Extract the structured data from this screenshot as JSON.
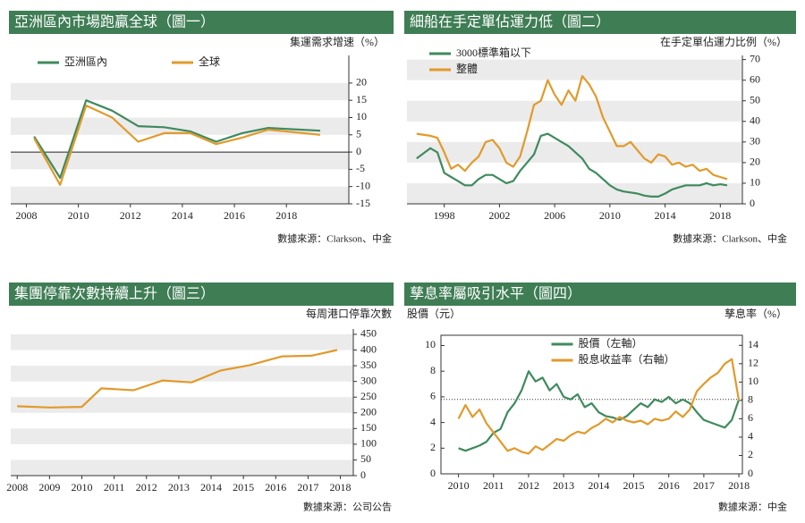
{
  "chart_data": [
    {
      "type": "line",
      "title": "亞洲區內市場跑贏全球（圖一）",
      "y_label": "集運需求增速（%）",
      "source": "數據來源：Clarkson、中金",
      "x": [
        2008.3,
        2009.3,
        2010.3,
        2011.3,
        2012.3,
        2013.3,
        2014.3,
        2015.3,
        2016.3,
        2017.3,
        2019.3
      ],
      "series": [
        {
          "name": "亞洲區內",
          "color": "#3f8a5e",
          "values": [
            4.5,
            -7.5,
            15,
            12,
            7.5,
            7.2,
            6,
            3,
            5.5,
            7,
            6.2
          ]
        },
        {
          "name": "全球",
          "color": "#e19a2b",
          "values": [
            4,
            -9.5,
            13.5,
            10,
            3,
            5.5,
            5.5,
            2.3,
            4.2,
            6.5,
            5
          ]
        }
      ],
      "xlim": [
        2007.4,
        2020.4
      ],
      "xticks": [
        2008,
        2010,
        2012,
        2014,
        2016,
        2018
      ],
      "ylim": [
        -15,
        28
      ],
      "yticks": [
        -15,
        -10,
        -5,
        0,
        5,
        10,
        15,
        20
      ],
      "grid": true,
      "legend": "top"
    },
    {
      "type": "line",
      "title": "細船在手定單佔運力低（圖二）",
      "y_label": "在手定單佔運力比例（%）",
      "source": "數據來源：Clarkson、中金",
      "x": [
        1996,
        1997,
        1997.5,
        1998,
        1998.5,
        1999,
        1999.5,
        2000,
        2000.5,
        2001,
        2001.5,
        2002,
        2002.5,
        2003,
        2003.5,
        2004,
        2004.5,
        2005,
        2005.5,
        2006,
        2006.5,
        2007,
        2007.5,
        2008,
        2008.5,
        2009,
        2009.5,
        2010,
        2010.5,
        2011,
        2011.5,
        2012,
        2012.5,
        2013,
        2013.5,
        2014,
        2014.5,
        2015,
        2015.5,
        2016,
        2016.5,
        2017,
        2017.5,
        2018,
        2018.5
      ],
      "series": [
        {
          "name": "3000標準箱以下",
          "color": "#3f8a5e",
          "values": [
            22,
            27,
            25,
            15,
            13,
            11,
            9,
            9,
            12,
            14,
            14,
            12,
            10,
            11,
            16,
            20,
            24,
            33,
            34,
            32,
            30,
            28,
            25,
            22,
            17,
            15,
            12,
            9,
            7,
            6,
            5.5,
            5,
            4,
            3.5,
            3.5,
            5,
            7,
            8,
            9,
            9,
            9,
            10,
            9,
            9.5,
            9
          ]
        },
        {
          "name": "整體",
          "color": "#e19a2b",
          "values": [
            34,
            33,
            32,
            25,
            17,
            19,
            16,
            20,
            23,
            30,
            31,
            27,
            20,
            18,
            23,
            35,
            48,
            50,
            60,
            53,
            48,
            55,
            50,
            62,
            58,
            52,
            42,
            35,
            28,
            28,
            30,
            26,
            22,
            20,
            24,
            23,
            19,
            20,
            18,
            19,
            16,
            17,
            14,
            13,
            12
          ]
        }
      ],
      "xlim": [
        1995.3,
        2019.6
      ],
      "xticks": [
        1998,
        2002,
        2006,
        2010,
        2014,
        2018
      ],
      "ylim": [
        0,
        72
      ],
      "yticks": [
        0,
        10,
        20,
        30,
        40,
        50,
        60,
        70
      ],
      "grid": true,
      "legend": "top-left"
    },
    {
      "type": "line",
      "title": "集團停靠次數持續上升（圖三）",
      "y_label": "每周港口停靠次數",
      "source": "數據來源：公司公告",
      "x": [
        2008,
        2009,
        2010,
        2010.6,
        2011.6,
        2012.5,
        2013.4,
        2014.3,
        2015.2,
        2016.2,
        2017.1,
        2017.9
      ],
      "series": [
        {
          "color": "#e19a2b",
          "values": [
            221,
            217,
            219,
            278,
            272,
            303,
            297,
            335,
            352,
            380,
            382,
            400
          ]
        }
      ],
      "xlim": [
        2007.8,
        2018.4
      ],
      "xticks": [
        2008,
        2009,
        2010,
        2011,
        2012,
        2013,
        2014,
        2015,
        2016,
        2017,
        2018
      ],
      "ylim": [
        0,
        467
      ],
      "yticks": [
        0,
        50,
        100,
        150,
        200,
        250,
        300,
        350,
        400,
        450
      ],
      "grid": true
    },
    {
      "type": "line",
      "title": "孳息率屬吸引水平（圖四）",
      "y_label": "股價（元）",
      "y2_label": "孳息率（%）",
      "source": "數據來源：中金",
      "x": [
        2010,
        2010.2,
        2010.4,
        2010.6,
        2010.8,
        2011,
        2011.2,
        2011.4,
        2011.6,
        2011.8,
        2012,
        2012.2,
        2012.4,
        2012.6,
        2012.8,
        2013,
        2013.2,
        2013.4,
        2013.6,
        2013.8,
        2014,
        2014.2,
        2014.4,
        2014.6,
        2014.8,
        2015,
        2015.2,
        2015.4,
        2015.6,
        2015.8,
        2016,
        2016.2,
        2016.4,
        2016.6,
        2016.8,
        2017,
        2017.2,
        2017.4,
        2017.6,
        2017.8,
        2018
      ],
      "series": [
        {
          "name": "股價（左軸）",
          "color": "#3f8a5e",
          "values": [
            2.0,
            1.8,
            2.0,
            2.2,
            2.5,
            3.2,
            3.5,
            4.8,
            5.5,
            6.5,
            8.0,
            7.2,
            7.5,
            6.5,
            7.0,
            6.0,
            5.8,
            6.2,
            5.2,
            5.5,
            4.8,
            4.5,
            4.4,
            4.2,
            4.5,
            5.0,
            5.5,
            5.2,
            5.8,
            5.6,
            6.0,
            5.5,
            5.8,
            5.5,
            4.8,
            4.2,
            4.0,
            3.8,
            3.6,
            4.2,
            5.8
          ]
        },
        {
          "name": "股息收益率（右軸）",
          "color": "#e19a2b",
          "axis": "y2",
          "values": [
            6.0,
            7.5,
            6.2,
            7.0,
            5.5,
            4.5,
            3.5,
            2.5,
            2.8,
            2.4,
            2.2,
            3.0,
            2.6,
            3.2,
            3.8,
            3.6,
            4.2,
            4.6,
            4.4,
            5.0,
            5.4,
            6.0,
            5.6,
            6.2,
            5.8,
            5.6,
            5.8,
            5.4,
            6.0,
            5.8,
            6.0,
            6.8,
            6.2,
            7.0,
            9.0,
            9.8,
            10.5,
            11.0,
            12.0,
            12.5,
            8.0
          ]
        }
      ],
      "xlim": [
        2009.5,
        2018.1
      ],
      "xticks": [
        2010,
        2011,
        2012,
        2013,
        2014,
        2015,
        2016,
        2017,
        2018
      ],
      "ylim": [
        0,
        10.8
      ],
      "yticks": [
        0,
        2,
        4,
        6,
        8,
        10
      ],
      "y2lim": [
        0,
        15.1
      ],
      "y2ticks": [
        0,
        2,
        4,
        6,
        8,
        10,
        12,
        14
      ],
      "ref_line": 5.8,
      "grid": false,
      "legend": "top-center"
    }
  ]
}
